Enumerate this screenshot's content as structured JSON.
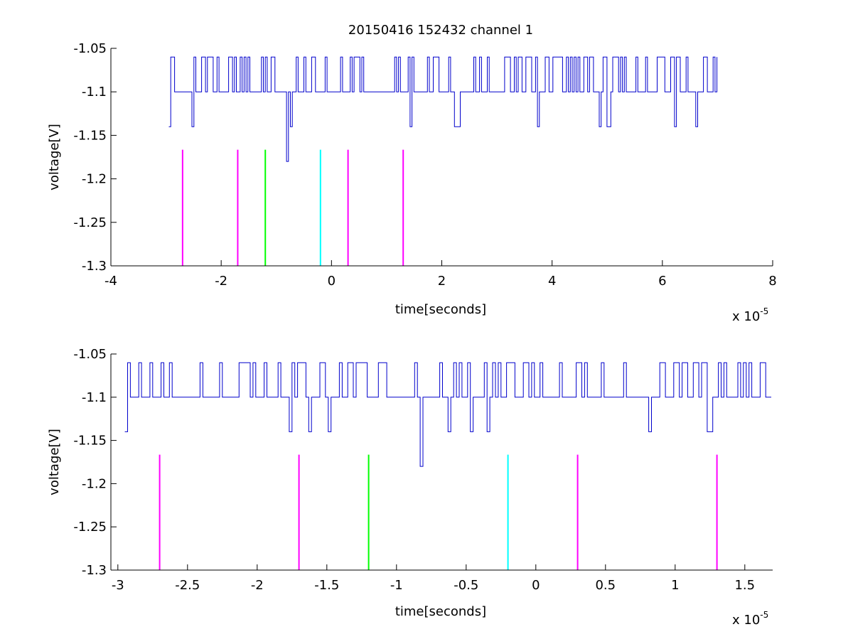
{
  "figure": {
    "title": "20150416 152432 channel 1"
  },
  "chart_data": [
    {
      "type": "line",
      "title": "20150416 152432 channel 1",
      "xlabel": "time[seconds]",
      "ylabel": "voltage[V]",
      "x_exponent_label": "x 10",
      "x_exponent_power": "-5",
      "xlim": [
        -4,
        8
      ],
      "ylim": [
        -1.3,
        -1.05
      ],
      "xticks": [
        -4,
        -2,
        0,
        2,
        4,
        6,
        8
      ],
      "xtick_labels": [
        "-4",
        "-2",
        "0",
        "2",
        "4",
        "6",
        "8"
      ],
      "yticks": [
        -1.05,
        -1.1,
        -1.15,
        -1.2,
        -1.25,
        -1.3
      ],
      "ytick_labels": [
        "-1.05",
        "-1.1",
        "-1.15",
        "-1.2",
        "-1.25",
        "-1.3"
      ],
      "grid": false,
      "series": [
        {
          "color": "#0000cc",
          "x_range": [
            -2.95,
            7.0
          ],
          "levels": [
            -1.06,
            -1.1,
            -1.14
          ],
          "notable_points": [
            {
              "x": -2.95,
              "y": -1.14
            },
            {
              "x": -0.83,
              "y": -1.18
            }
          ]
        }
      ],
      "markers": [
        {
          "x": -2.7,
          "color": "#ff00ff",
          "y_top": -1.1665,
          "y_bottom": -1.3
        },
        {
          "x": -1.7,
          "color": "#ff00ff",
          "y_top": -1.1665,
          "y_bottom": -1.3
        },
        {
          "x": -1.2,
          "color": "#00ff00",
          "y_top": -1.1665,
          "y_bottom": -1.3
        },
        {
          "x": -0.2,
          "color": "#00ffff",
          "y_top": -1.1665,
          "y_bottom": -1.3
        },
        {
          "x": 0.3,
          "color": "#ff00ff",
          "y_top": -1.1665,
          "y_bottom": -1.3
        },
        {
          "x": 1.3,
          "color": "#ff00ff",
          "y_top": -1.1665,
          "y_bottom": -1.3
        }
      ]
    },
    {
      "type": "line",
      "title": "",
      "xlabel": "time[seconds]",
      "ylabel": "voltage[V]",
      "x_exponent_label": "x 10",
      "x_exponent_power": "-5",
      "xlim": [
        -3.05,
        1.7
      ],
      "ylim": [
        -1.3,
        -1.05
      ],
      "xticks": [
        -3,
        -2.5,
        -2,
        -1.5,
        -1,
        -0.5,
        0,
        0.5,
        1,
        1.5
      ],
      "xtick_labels": [
        "-3",
        "-2.5",
        "-2",
        "-1.5",
        "-1",
        "-0.5",
        "0",
        "0.5",
        "1",
        "1.5"
      ],
      "yticks": [
        -1.05,
        -1.1,
        -1.15,
        -1.2,
        -1.25,
        -1.3
      ],
      "ytick_labels": [
        "-1.05",
        "-1.1",
        "-1.15",
        "-1.2",
        "-1.25",
        "-1.3"
      ],
      "grid": false,
      "series": [
        {
          "color": "#0000cc",
          "x_range": [
            -2.95,
            1.7
          ],
          "levels": [
            -1.06,
            -1.1,
            -1.14
          ],
          "notable_points": [
            {
              "x": -2.95,
              "y": -1.14
            },
            {
              "x": -0.83,
              "y": -1.18
            }
          ]
        }
      ],
      "markers": [
        {
          "x": -2.7,
          "color": "#ff00ff",
          "y_top": -1.1665,
          "y_bottom": -1.3
        },
        {
          "x": -1.7,
          "color": "#ff00ff",
          "y_top": -1.1665,
          "y_bottom": -1.3
        },
        {
          "x": -1.2,
          "color": "#00ff00",
          "y_top": -1.1665,
          "y_bottom": -1.3
        },
        {
          "x": -0.2,
          "color": "#00ffff",
          "y_top": -1.1665,
          "y_bottom": -1.3
        },
        {
          "x": 0.3,
          "color": "#ff00ff",
          "y_top": -1.1665,
          "y_bottom": -1.3
        },
        {
          "x": 1.3,
          "color": "#ff00ff",
          "y_top": -1.1665,
          "y_bottom": -1.3
        }
      ]
    }
  ]
}
